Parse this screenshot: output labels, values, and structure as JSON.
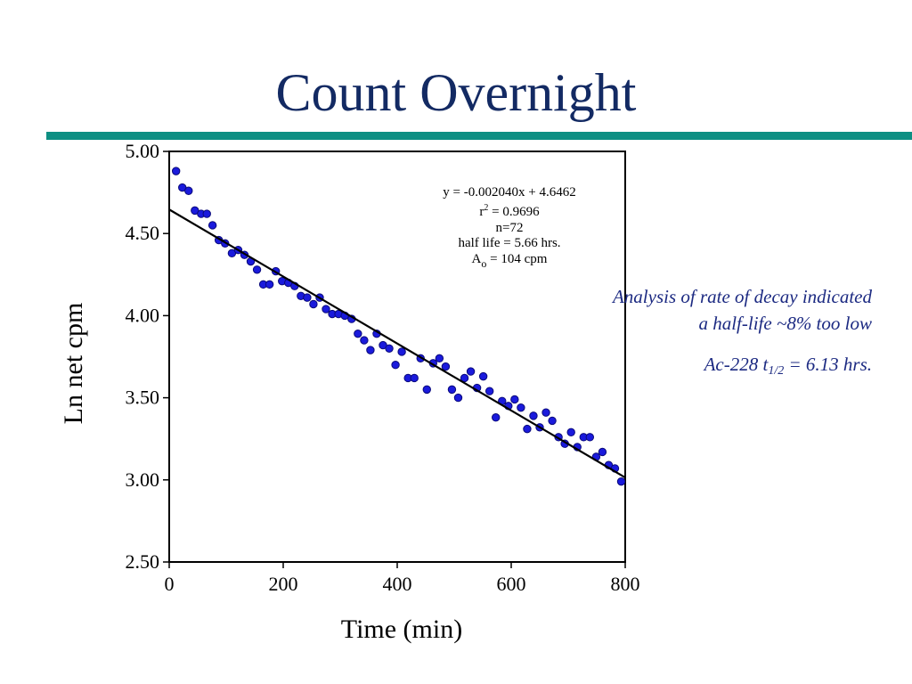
{
  "slide": {
    "title": "Count Overnight",
    "accent_color": "#0e8f83",
    "title_color": "#132a63"
  },
  "notes": {
    "line1": "Analysis of rate of decay indicated a half-life ~8% too low",
    "line2_prefix": "Ac-228 t",
    "line2_sub": "1/2",
    "line2_suffix": " = 6.13 hrs."
  },
  "chart_data": {
    "type": "scatter",
    "xlabel": "Time (min)",
    "ylabel": "Ln net cpm",
    "xlim": [
      0,
      800
    ],
    "ylim": [
      2.5,
      5.0
    ],
    "x_ticks": [
      "0",
      "200",
      "400",
      "600",
      "800"
    ],
    "y_ticks": [
      "2.50",
      "3.00",
      "3.50",
      "4.00",
      "4.50",
      "5.00"
    ],
    "grid": false,
    "marker_color": "#1a1adc",
    "annotation": {
      "eq": "y =  -0.002040x + 4.6462",
      "r2_prefix": "r",
      "r2_sup": "2",
      "r2_suffix": " = 0.9696",
      "n": "n=72",
      "half_life": "half life = 5.66 hrs.",
      "a0_prefix": "A",
      "a0_sub": "o",
      "a0_suffix": " = 104 cpm"
    },
    "fit": {
      "slope": -0.00204,
      "intercept": 4.6462,
      "x": [
        0,
        800
      ]
    },
    "series": [
      {
        "points": [
          [
            12,
            4.88
          ],
          [
            23,
            4.78
          ],
          [
            34,
            4.76
          ],
          [
            45,
            4.64
          ],
          [
            56,
            4.62
          ],
          [
            66,
            4.62
          ],
          [
            76,
            4.55
          ],
          [
            87,
            4.46
          ],
          [
            98,
            4.44
          ],
          [
            110,
            4.38
          ],
          [
            121,
            4.4
          ],
          [
            132,
            4.37
          ],
          [
            143,
            4.33
          ],
          [
            154,
            4.28
          ],
          [
            165,
            4.19
          ],
          [
            176,
            4.19
          ],
          [
            187,
            4.27
          ],
          [
            198,
            4.21
          ],
          [
            209,
            4.2
          ],
          [
            220,
            4.18
          ],
          [
            231,
            4.12
          ],
          [
            242,
            4.11
          ],
          [
            253,
            4.07
          ],
          [
            264,
            4.11
          ],
          [
            275,
            4.04
          ],
          [
            286,
            4.01
          ],
          [
            297,
            4.01
          ],
          [
            308,
            4.0
          ],
          [
            320,
            3.98
          ],
          [
            331,
            3.89
          ],
          [
            342,
            3.85
          ],
          [
            353,
            3.79
          ],
          [
            364,
            3.89
          ],
          [
            375,
            3.82
          ],
          [
            386,
            3.8
          ],
          [
            397,
            3.7
          ],
          [
            408,
            3.78
          ],
          [
            419,
            3.62
          ],
          [
            430,
            3.62
          ],
          [
            441,
            3.74
          ],
          [
            452,
            3.55
          ],
          [
            463,
            3.71
          ],
          [
            474,
            3.74
          ],
          [
            485,
            3.69
          ],
          [
            496,
            3.55
          ],
          [
            507,
            3.5
          ],
          [
            518,
            3.62
          ],
          [
            529,
            3.66
          ],
          [
            540,
            3.56
          ],
          [
            551,
            3.63
          ],
          [
            562,
            3.54
          ],
          [
            573,
            3.38
          ],
          [
            584,
            3.48
          ],
          [
            595,
            3.45
          ],
          [
            606,
            3.49
          ],
          [
            617,
            3.44
          ],
          [
            628,
            3.31
          ],
          [
            639,
            3.39
          ],
          [
            650,
            3.32
          ],
          [
            661,
            3.41
          ],
          [
            672,
            3.36
          ],
          [
            683,
            3.26
          ],
          [
            694,
            3.22
          ],
          [
            705,
            3.29
          ],
          [
            716,
            3.2
          ],
          [
            727,
            3.26
          ],
          [
            738,
            3.26
          ],
          [
            749,
            3.14
          ],
          [
            760,
            3.17
          ],
          [
            771,
            3.09
          ],
          [
            782,
            3.07
          ],
          [
            793,
            2.99
          ]
        ]
      }
    ]
  }
}
